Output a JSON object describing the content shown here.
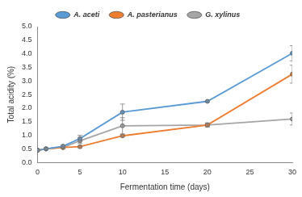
{
  "chart_data": {
    "type": "line",
    "x_label": "Fermentation time (days)",
    "y_label": "Total acidity (%)",
    "x": [
      0,
      1,
      3,
      5,
      10,
      20,
      30
    ],
    "series": [
      {
        "name": "A. aceti",
        "color": "#5b9bd5",
        "marker": "circle",
        "values": [
          0.45,
          0.5,
          0.6,
          0.88,
          1.85,
          2.25,
          4.02
        ],
        "errors": [
          0.02,
          0.03,
          0.04,
          0.12,
          0.3,
          0.03,
          0.28
        ]
      },
      {
        "name": "A. pasterianus",
        "color": "#ed7d31",
        "marker": "circle",
        "values": [
          0.45,
          0.5,
          0.55,
          0.58,
          0.98,
          1.38,
          3.25
        ],
        "errors": [
          0.02,
          0.03,
          0.03,
          0.04,
          0.04,
          0.08,
          0.33
        ]
      },
      {
        "name": "G. xylinus",
        "color": "#a5a5a5",
        "marker": "circle",
        "values": [
          0.45,
          0.5,
          0.55,
          0.8,
          1.35,
          1.38,
          1.6
        ],
        "errors": [
          0.02,
          0.03,
          0.03,
          0.1,
          0.3,
          0.06,
          0.22
        ]
      }
    ],
    "xlim": [
      0,
      30
    ],
    "xticks": [
      0,
      5,
      10,
      15,
      20,
      25,
      30
    ],
    "ylim": [
      0,
      5
    ],
    "yticks": [
      {
        "value": 0,
        "label": "0.0"
      },
      {
        "value": 0.5,
        "label": "0.5"
      },
      {
        "value": 1,
        "label": "1.0"
      },
      {
        "value": 1.5,
        "label": "1.5"
      },
      {
        "value": 2,
        "label": "2.0"
      },
      {
        "value": 2.5,
        "label": "2.5"
      },
      {
        "value": 3,
        "label": "3.0"
      },
      {
        "value": 3.5,
        "label": "3.5"
      },
      {
        "value": 4,
        "label": "4.0"
      },
      {
        "value": 4.5,
        "label": "4.5"
      },
      {
        "value": 5,
        "label": "5.0"
      }
    ],
    "grid": false,
    "legend": "top"
  }
}
